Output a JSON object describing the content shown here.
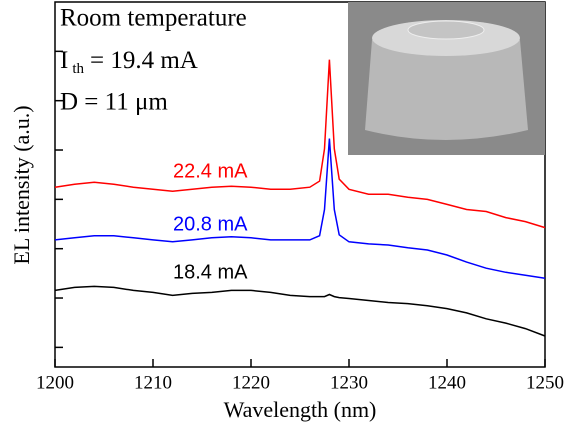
{
  "chart_data": {
    "type": "line",
    "xlabel": "Wavelength (nm)",
    "ylabel": "EL intensity (a.u.)",
    "annotations": [
      "Room temperature",
      "D = 11 μm"
    ],
    "threshold": {
      "symbol": "I",
      "subscript": "th",
      "text": "= 19.4 mA"
    },
    "x": [
      1200,
      1202,
      1204,
      1206,
      1208,
      1210,
      1212,
      1214,
      1216,
      1218,
      1220,
      1222,
      1224,
      1226,
      1227,
      1227.5,
      1228,
      1228.5,
      1229,
      1230,
      1232,
      1234,
      1236,
      1238,
      1240,
      1242,
      1244,
      1246,
      1248,
      1250
    ],
    "series": [
      {
        "name": "22.4 mA",
        "color": "#ff0000",
        "values": [
          17600,
          20300,
          22300,
          20300,
          17600,
          16000,
          14600,
          16000,
          17600,
          18500,
          17600,
          16000,
          16000,
          17600,
          23400,
          106000,
          6780000,
          106000,
          25700,
          16000,
          12700,
          12700,
          11000,
          10000,
          7890,
          6240,
          5670,
          4270,
          3540,
          2670
        ]
      },
      {
        "name": "20.8 mA",
        "color": "#0000ff",
        "values": [
          1510,
          1660,
          1830,
          1830,
          1660,
          1510,
          1380,
          1510,
          1660,
          1740,
          1660,
          1510,
          1510,
          1510,
          1830,
          6240,
          170000,
          6240,
          1910,
          1380,
          1250,
          1190,
          1040,
          940,
          745,
          535,
          403,
          333,
          290,
          251
        ]
      },
      {
        "name": "18.4 mA",
        "color": "#000000",
        "values": [
          143,
          164,
          172,
          164,
          143,
          130,
          113,
          124,
          130,
          143,
          143,
          130,
          113,
          107,
          107,
          107,
          118,
          107,
          102,
          98,
          89,
          81,
          77,
          70,
          61,
          50,
          38,
          31,
          24,
          17
        ]
      }
    ],
    "xlim": [
      1200,
      1250
    ],
    "xticks": [
      1200,
      1210,
      1220,
      1230,
      1240,
      1250
    ],
    "ylim": [
      4,
      100000000
    ],
    "ylog": true,
    "yticks": [
      10,
      100,
      1000,
      10000,
      100000,
      1000000,
      10000000
    ]
  }
}
